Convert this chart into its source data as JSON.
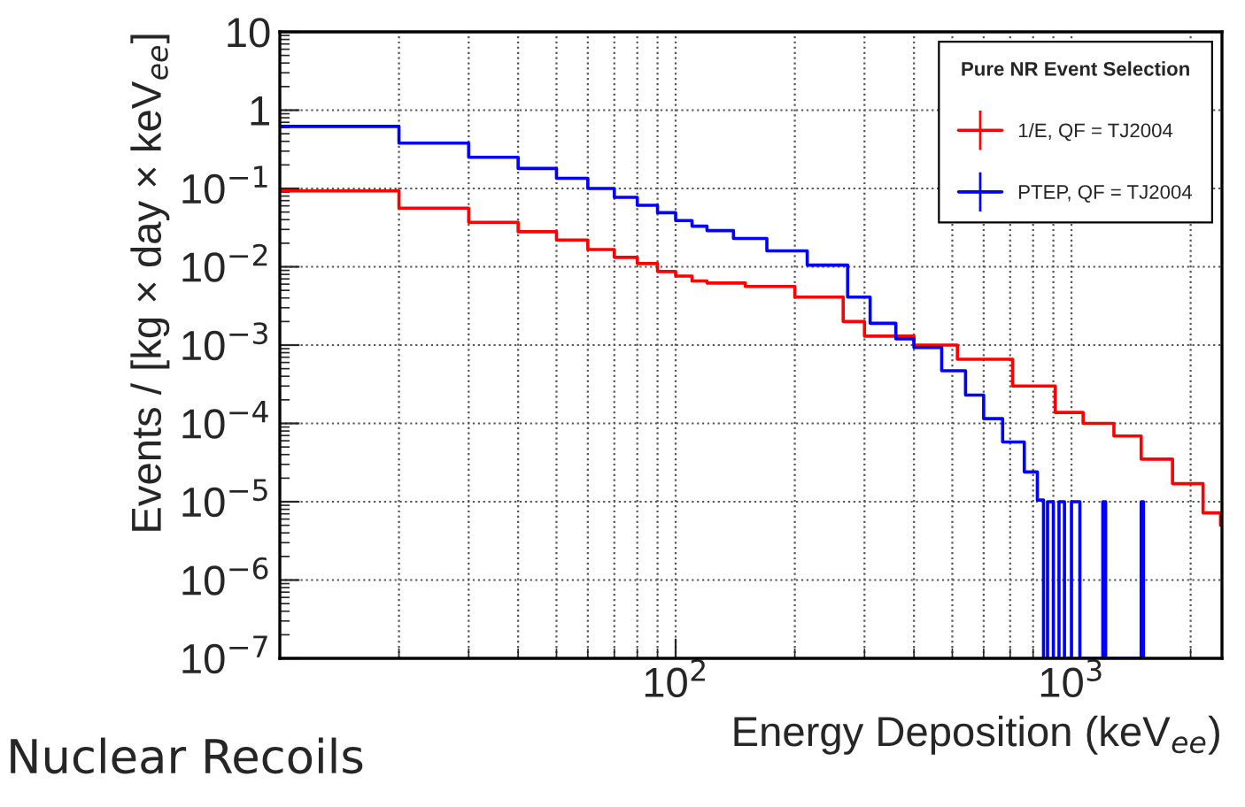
{
  "chart_data": {
    "type": "step",
    "xlabel": "Energy Deposition (keV$_{ee}$)",
    "ylabel": "Events / [kg × day × keV$_{ee}$]",
    "legend_title": "Pure NR Event Selection",
    "annotations": [
      "Nuclear Recoils"
    ],
    "log": "xy",
    "grid": true,
    "legend": "top right",
    "marker": "none",
    "line_style": "solid",
    "xlim": [
      10,
      2400
    ],
    "xticks": [
      {
        "value": 100,
        "label": "10$^{2}$"
      },
      {
        "value": 1000,
        "label": "10$^{3}$"
      }
    ],
    "ylim": [
      1e-07,
      10
    ],
    "yticks": [
      {
        "value": 1e-07,
        "label": "10$^{−7}$"
      },
      {
        "value": 1e-06,
        "label": "10$^{−6}$"
      },
      {
        "value": 1e-05,
        "label": "10$^{−5}$"
      },
      {
        "value": 0.0001,
        "label": "10$^{−4}$"
      },
      {
        "value": 0.001,
        "label": "10$^{−3}$"
      },
      {
        "value": 0.01,
        "label": "10$^{−2}$"
      },
      {
        "value": 0.1,
        "label": "10$^{−1}$"
      },
      1,
      10
    ],
    "series": [
      {
        "name": "1/E, QF = TJ2004",
        "color": "#ff0000",
        "x": [
          10,
          20,
          30,
          40,
          50,
          60,
          70,
          80,
          90,
          100,
          110,
          120,
          150,
          200,
          265,
          300,
          400,
          515,
          710,
          910,
          1070,
          1280,
          1500,
          1800,
          2150,
          2380
        ],
        "values": [
          0.093,
          0.056,
          0.037,
          0.028,
          0.022,
          0.0166,
          0.0132,
          0.011,
          0.0087,
          0.0076,
          0.0066,
          0.0062,
          0.0056,
          0.0041,
          0.002,
          0.0013,
          0.001,
          0.00066,
          0.0003,
          0.000138,
          0.0001,
          6.9e-05,
          3.5e-05,
          1.7e-05,
          7.2e-06,
          5e-06
        ]
      },
      {
        "name": "PTEP, QF = TJ2004",
        "color": "#0000ff",
        "x": [
          10,
          20,
          30,
          40,
          50,
          60,
          70,
          80,
          90,
          100,
          110,
          120,
          140,
          170,
          215,
          272,
          310,
          360,
          400,
          470,
          540,
          600,
          670,
          760,
          820,
          850,
          870,
          900,
          930,
          960,
          1000,
          1050,
          1200,
          1220,
          1500,
          1520
        ],
        "values": [
          0.62,
          0.38,
          0.25,
          0.18,
          0.135,
          0.1,
          0.077,
          0.061,
          0.049,
          0.039,
          0.033,
          0.029,
          0.023,
          0.016,
          0.0105,
          0.0041,
          0.0019,
          0.0012,
          0.00093,
          0.00047,
          0.00023,
          0.000115,
          5.8e-05,
          2.4e-05,
          1.05e-05,
          1e-07,
          1e-05,
          1e-07,
          1e-05,
          1e-07,
          1e-05,
          1e-07,
          1e-05,
          1e-07,
          1e-05,
          1e-07
        ]
      }
    ]
  }
}
